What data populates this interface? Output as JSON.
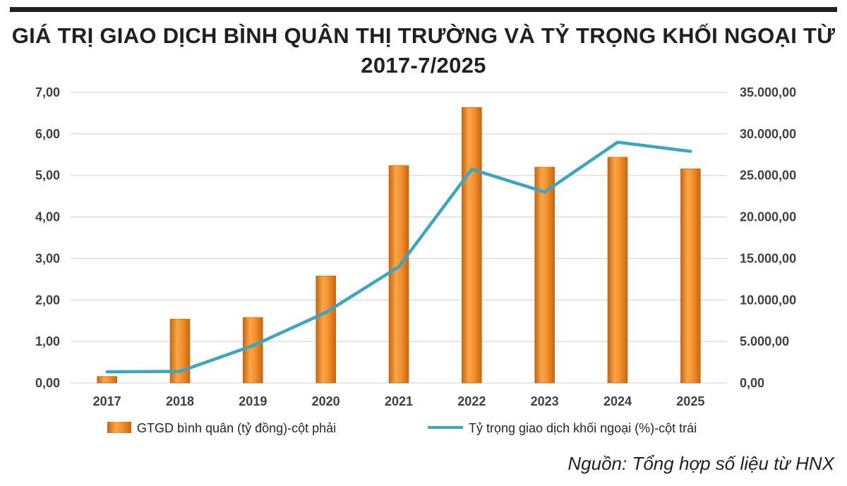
{
  "title_line1": "GIÁ TRỊ GIAO DỊCH BÌNH QUÂN THỊ TRƯỜNG VÀ TỶ TRỌNG KHỐI NGOẠI TỪ",
  "title_line2": "2017-7/2025",
  "source": "Nguồn: Tổng hợp số liệu từ HNX",
  "colors": {
    "bar": "#f5922e",
    "bar_dark": "#c9650f",
    "line": "#3aa6bf",
    "grid": "#d9d9d9",
    "rule": "#231f20"
  },
  "chart_data": {
    "type": "bar",
    "categories": [
      "2017",
      "2018",
      "2019",
      "2020",
      "2021",
      "2022",
      "2023",
      "2024",
      "2025"
    ],
    "y_left": {
      "ylim": [
        0,
        7
      ],
      "ticks": [
        "0,00",
        "1,00",
        "2,00",
        "3,00",
        "4,00",
        "5,00",
        "6,00",
        "7,00"
      ]
    },
    "y_right": {
      "ylim": [
        0,
        35000
      ],
      "ticks": [
        "0,00",
        "5.000,00",
        "10.000,00",
        "15.000,00",
        "20.000,00",
        "25.000,00",
        "30.000,00",
        "35.000,00"
      ]
    },
    "grid": true,
    "legend_position": "bottom",
    "series": [
      {
        "name": "GTGD bình quân (tỷ đồng)-cột phải",
        "type": "bar",
        "axis": "right",
        "values": [
          800,
          7700,
          7900,
          12900,
          26200,
          33200,
          26000,
          27200,
          25800
        ]
      },
      {
        "name": "Tỷ trọng giao dịch khối ngoại (%)-cột trái",
        "type": "line",
        "axis": "left",
        "values": [
          0.27,
          0.28,
          0.9,
          1.7,
          2.8,
          5.15,
          4.6,
          5.8,
          5.58
        ]
      }
    ]
  }
}
